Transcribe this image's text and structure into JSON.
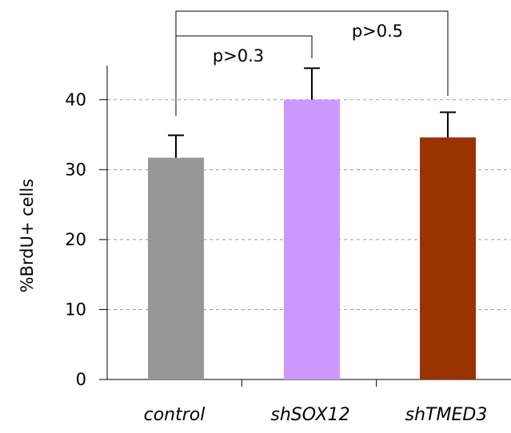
{
  "chart_data": {
    "type": "bar",
    "categories": [
      "control",
      "shSOX12",
      "shTMED3"
    ],
    "values": [
      31.7,
      40.0,
      34.6
    ],
    "errors": [
      3.2,
      4.5,
      3.6
    ],
    "colors": [
      "#979797",
      "#cc99ff",
      "#993300"
    ],
    "xlabel": "",
    "ylabel": "%BrdU+ cells",
    "ylim": [
      0,
      45
    ],
    "yticks": [
      0,
      10,
      20,
      30,
      40
    ],
    "grid": true,
    "legend": "none",
    "annotations": [
      {
        "text": "p>0.3",
        "from": "control",
        "to": "shSOX12"
      },
      {
        "text": "p>0.5",
        "from": "control",
        "to": "shTMED3"
      }
    ]
  }
}
